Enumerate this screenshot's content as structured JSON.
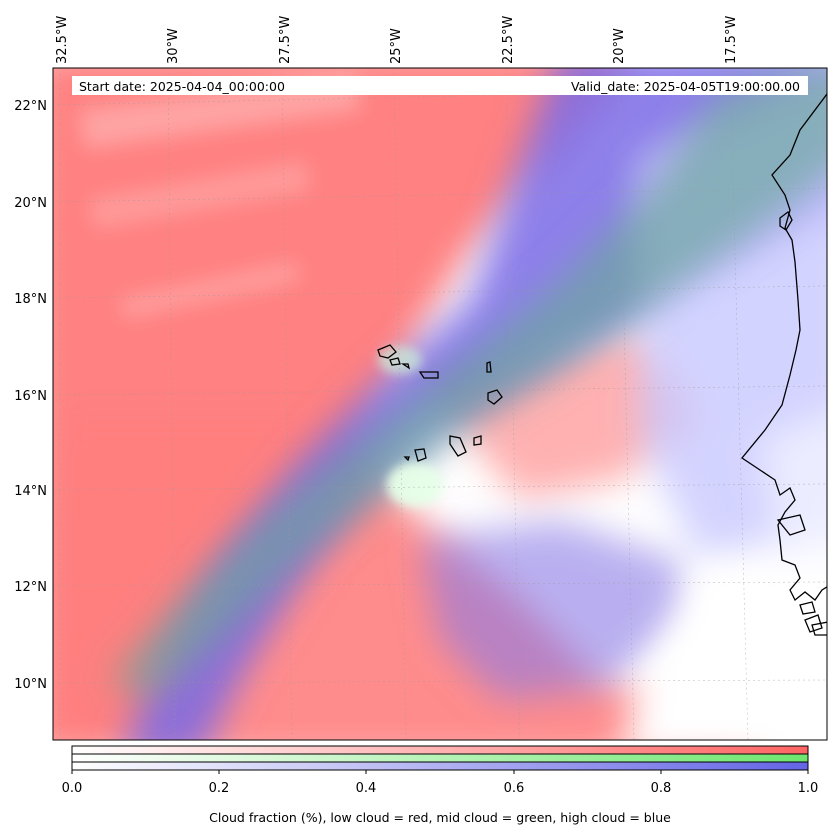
{
  "header": {
    "start_date": "Start date: 2025-04-04_00:00:00",
    "valid_date": "Valid_date: 2025-04-05T19:00:00.00"
  },
  "axes": {
    "lon_labels": [
      "32.5°W",
      "30°W",
      "27.5°W",
      "25°W",
      "22.5°W",
      "20°W",
      "17.5°W"
    ],
    "lat_labels": [
      "22°N",
      "20°N",
      "18°N",
      "16°N",
      "14°N",
      "12°N",
      "10°N"
    ]
  },
  "colorbar": {
    "ticks": [
      "0.0",
      "0.2",
      "0.4",
      "0.6",
      "0.8",
      "1.0"
    ],
    "label": "Cloud fraction (%), low cloud = red, mid cloud = green, high cloud = blue",
    "colors": {
      "low": "#ff7070",
      "mid": "#80ee80",
      "high": "#7070ee"
    }
  },
  "legend_meaning": {
    "low": "red",
    "mid": "green",
    "high": "blue"
  }
}
